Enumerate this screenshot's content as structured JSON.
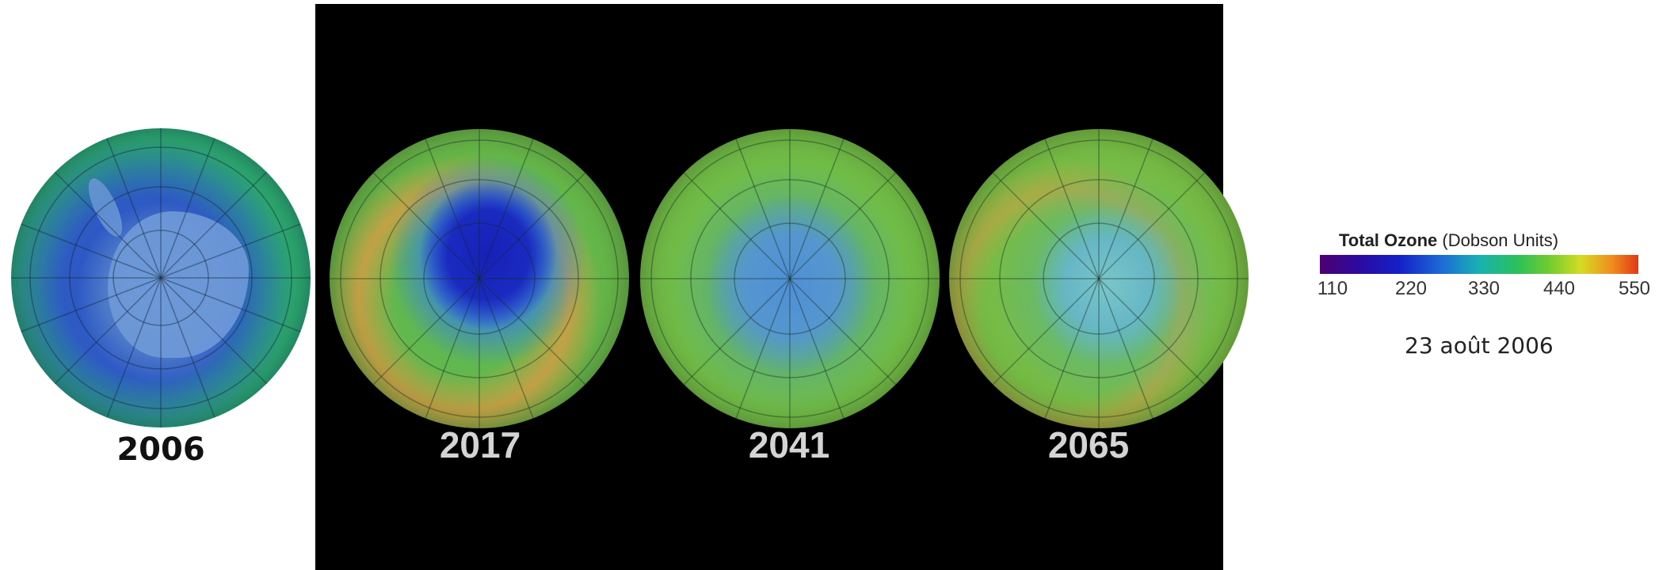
{
  "globes": [
    {
      "year": "2006"
    },
    {
      "year": "2017"
    },
    {
      "year": "2041"
    },
    {
      "year": "2065"
    }
  ],
  "legend": {
    "title_bold": "Total Ozone",
    "title_unit": "(Dobson Units)",
    "ticks": [
      "110",
      "220",
      "330",
      "440",
      "550"
    ],
    "date": "23 août 2006"
  },
  "colors": {
    "black_panel": "#000000",
    "ozone_hole_blue": "#1a2bc0",
    "healthy_green": "#6bbc4a",
    "high_ozone_orange": "#d6a040"
  }
}
